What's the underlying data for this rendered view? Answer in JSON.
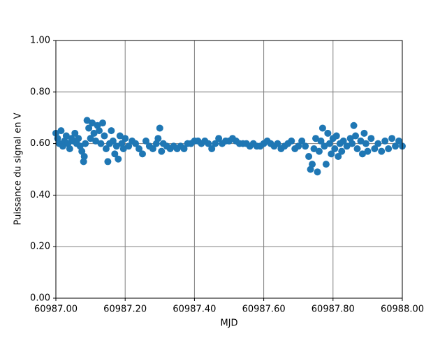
{
  "chart_data": {
    "type": "scatter",
    "xlabel": "MJD",
    "ylabel": "Puissance du signal en V",
    "grid": true,
    "grid_color": "#808080",
    "color": "#1f77b4",
    "xlim": [
      60987,
      60988
    ],
    "xticks": [
      {
        "value": 60987,
        "label": "60987.00"
      },
      {
        "value": 60987.2,
        "label": "60987.20"
      },
      {
        "value": 60987.4,
        "label": "60987.40"
      },
      {
        "value": 60987.6,
        "label": "60987.60"
      },
      {
        "value": 60987.8,
        "label": "60987.80"
      },
      {
        "value": 60988,
        "label": "60988.00"
      }
    ],
    "ylim": [
      0,
      1
    ],
    "yticks": [
      {
        "value": 0,
        "label": "0.00"
      },
      {
        "value": 0.2,
        "label": "0.20"
      },
      {
        "value": 0.4,
        "label": "0.40"
      },
      {
        "value": 0.6,
        "label": "0.60"
      },
      {
        "value": 0.8,
        "label": "0.80"
      },
      {
        "value": 1,
        "label": "1.00"
      }
    ],
    "x": [
      60987,
      60987.005,
      60987.01,
      60987.015,
      60987.02,
      60987.025,
      60987.03,
      60987.035,
      60987.04,
      60987.045,
      60987.05,
      60987.055,
      60987.06,
      60987.065,
      60987.07,
      60987.075,
      60987.08,
      60987.082,
      60987.085,
      60987.09,
      60987.095,
      60987.1,
      60987.105,
      60987.11,
      60987.115,
      60987.12,
      60987.125,
      60987.13,
      60987.135,
      60987.14,
      60987.145,
      60987.15,
      60987.155,
      60987.16,
      60987.165,
      60987.17,
      60987.175,
      60987.18,
      60987.185,
      60987.19,
      60987.195,
      60987.2,
      60987.21,
      60987.22,
      60987.23,
      60987.24,
      60987.25,
      60987.26,
      60987.27,
      60987.28,
      60987.29,
      60987.295,
      60987.3,
      60987.305,
      60987.31,
      60987.32,
      60987.33,
      60987.34,
      60987.35,
      60987.36,
      60987.37,
      60987.38,
      60987.39,
      60987.4,
      60987.41,
      60987.42,
      60987.43,
      60987.44,
      60987.45,
      60987.46,
      60987.47,
      60987.48,
      60987.49,
      60987.5,
      60987.51,
      60987.52,
      60987.53,
      60987.54,
      60987.55,
      60987.56,
      60987.57,
      60987.58,
      60987.59,
      60987.6,
      60987.61,
      60987.62,
      60987.63,
      60987.64,
      60987.65,
      60987.66,
      60987.67,
      60987.68,
      60987.69,
      60987.7,
      60987.71,
      60987.72,
      60987.73,
      60987.735,
      60987.74,
      60987.745,
      60987.75,
      60987.755,
      60987.76,
      60987.765,
      60987.77,
      60987.775,
      60987.78,
      60987.785,
      60987.79,
      60987.795,
      60987.8,
      60987.805,
      60987.81,
      60987.815,
      60987.82,
      60987.825,
      60987.83,
      60987.84,
      60987.85,
      60987.855,
      60987.86,
      60987.865,
      60987.87,
      60987.88,
      60987.885,
      60987.89,
      60987.895,
      60987.9,
      60987.91,
      60987.92,
      60987.93,
      60987.94,
      60987.95,
      60987.96,
      60987.97,
      60987.98,
      60987.99,
      60988
    ],
    "values": [
      0.64,
      0.62,
      0.6,
      0.65,
      0.59,
      0.61,
      0.63,
      0.6,
      0.58,
      0.62,
      0.61,
      0.64,
      0.6,
      0.62,
      0.59,
      0.57,
      0.53,
      0.55,
      0.6,
      0.69,
      0.66,
      0.62,
      0.68,
      0.64,
      0.61,
      0.67,
      0.65,
      0.6,
      0.68,
      0.63,
      0.58,
      0.53,
      0.6,
      0.65,
      0.61,
      0.56,
      0.59,
      0.54,
      0.63,
      0.6,
      0.58,
      0.62,
      0.59,
      0.61,
      0.6,
      0.58,
      0.56,
      0.61,
      0.59,
      0.58,
      0.6,
      0.62,
      0.66,
      0.57,
      0.6,
      0.59,
      0.58,
      0.59,
      0.58,
      0.59,
      0.58,
      0.6,
      0.6,
      0.61,
      0.61,
      0.6,
      0.61,
      0.6,
      0.58,
      0.6,
      0.62,
      0.6,
      0.61,
      0.61,
      0.62,
      0.61,
      0.6,
      0.6,
      0.6,
      0.59,
      0.6,
      0.59,
      0.59,
      0.6,
      0.61,
      0.6,
      0.59,
      0.6,
      0.58,
      0.59,
      0.6,
      0.61,
      0.58,
      0.59,
      0.61,
      0.59,
      0.55,
      0.5,
      0.52,
      0.58,
      0.62,
      0.49,
      0.57,
      0.61,
      0.66,
      0.59,
      0.52,
      0.64,
      0.6,
      0.56,
      0.62,
      0.58,
      0.63,
      0.55,
      0.6,
      0.57,
      0.61,
      0.59,
      0.62,
      0.6,
      0.67,
      0.63,
      0.58,
      0.61,
      0.56,
      0.64,
      0.6,
      0.57,
      0.62,
      0.58,
      0.6,
      0.57,
      0.61,
      0.58,
      0.62,
      0.59,
      0.61,
      0.59
    ]
  }
}
